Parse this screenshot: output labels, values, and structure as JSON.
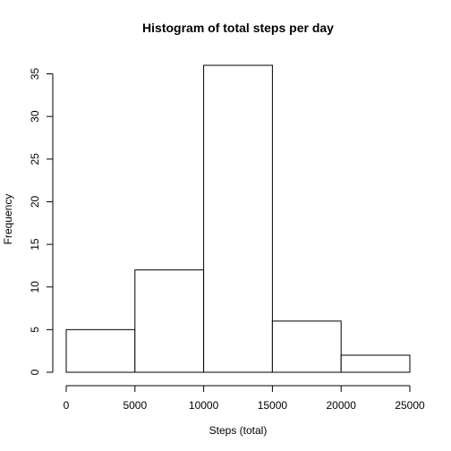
{
  "chart_data": {
    "type": "bar",
    "title": "Histogram of total steps per day",
    "xlabel": "Steps (total)",
    "ylabel": "Frequency",
    "bins": [
      {
        "from": 0,
        "to": 5000,
        "count": 5
      },
      {
        "from": 5000,
        "to": 10000,
        "count": 12
      },
      {
        "from": 10000,
        "to": 15000,
        "count": 36
      },
      {
        "from": 15000,
        "to": 20000,
        "count": 6
      },
      {
        "from": 20000,
        "to": 25000,
        "count": 2
      }
    ],
    "xlim": [
      0,
      25000
    ],
    "ylim": [
      0,
      36
    ],
    "xticks": [
      0,
      5000,
      10000,
      15000,
      20000,
      25000
    ],
    "yticks": [
      0,
      5,
      10,
      15,
      20,
      25,
      30,
      35
    ],
    "grid": false,
    "colors": {
      "bar_fill": "#ffffff",
      "bar_stroke": "#000000"
    }
  }
}
